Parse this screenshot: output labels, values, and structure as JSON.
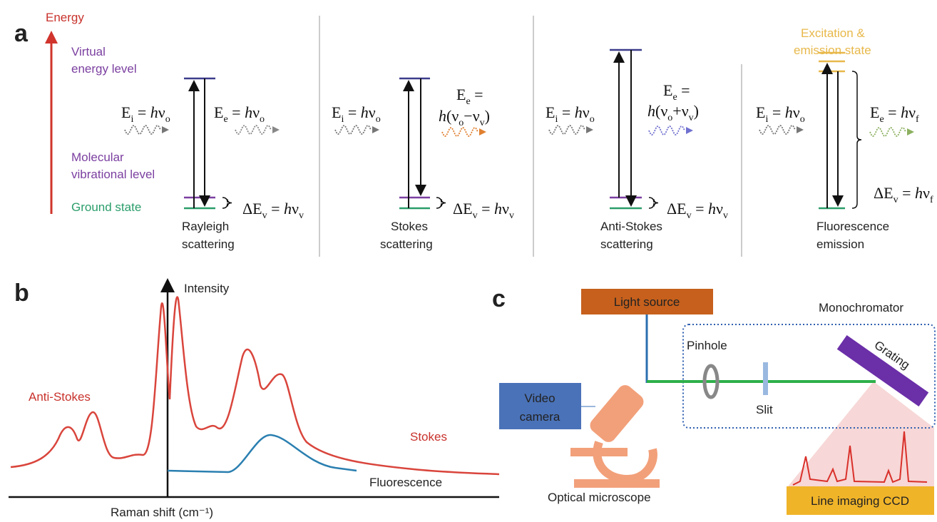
{
  "panel_a": {
    "label": "a",
    "axis_label": "Energy",
    "levels": {
      "virtual": [
        "Virtual",
        "energy level"
      ],
      "vibrational": [
        "Molecular",
        "vibrational level"
      ],
      "ground": "Ground state"
    },
    "excitation_state": [
      "Excitation &",
      "emission state"
    ],
    "processes": [
      {
        "name": [
          "Rayleigh",
          "scattering"
        ],
        "incident": [
          {
            "t": "E"
          },
          {
            "sub": "i"
          },
          {
            "t": " = "
          },
          {
            "i": "h"
          },
          {
            "t": "ν"
          },
          {
            "sub": "o"
          }
        ],
        "emitted": [
          [
            {
              "t": "E"
            },
            {
              "sub": "e"
            },
            {
              "t": " = "
            },
            {
              "i": "h"
            },
            {
              "t": "ν"
            },
            {
              "sub": "o"
            }
          ]
        ],
        "delta": [
          {
            "t": "ΔE"
          },
          {
            "sub": "v"
          },
          {
            "t": " = "
          },
          {
            "i": "h"
          },
          {
            "t": "ν"
          },
          {
            "sub": "v"
          }
        ]
      },
      {
        "name": [
          "Stokes",
          "scattering"
        ],
        "incident": [
          {
            "t": "E"
          },
          {
            "sub": "i"
          },
          {
            "t": " = "
          },
          {
            "i": "h"
          },
          {
            "t": "ν"
          },
          {
            "sub": "o"
          }
        ],
        "emitted": [
          [
            {
              "t": "E"
            },
            {
              "sub": "e"
            },
            {
              "t": " ="
            }
          ],
          [
            {
              "i": "h"
            },
            {
              "t": "(ν"
            },
            {
              "sub": "o"
            },
            {
              "t": "−ν"
            },
            {
              "sub": "v"
            },
            {
              "t": ")"
            }
          ]
        ],
        "delta": [
          {
            "t": "ΔE"
          },
          {
            "sub": "v"
          },
          {
            "t": " = "
          },
          {
            "i": "h"
          },
          {
            "t": "ν"
          },
          {
            "sub": "v"
          }
        ]
      },
      {
        "name": [
          "Anti-Stokes",
          "scattering"
        ],
        "incident": [
          {
            "t": "E"
          },
          {
            "sub": "i"
          },
          {
            "t": " = "
          },
          {
            "i": "h"
          },
          {
            "t": "ν"
          },
          {
            "sub": "o"
          }
        ],
        "emitted": [
          [
            {
              "t": "E"
            },
            {
              "sub": "e"
            },
            {
              "t": " ="
            }
          ],
          [
            {
              "i": "h"
            },
            {
              "t": "(ν"
            },
            {
              "sub": "o"
            },
            {
              "t": "+ν"
            },
            {
              "sub": "v"
            },
            {
              "t": ")"
            }
          ]
        ],
        "delta": [
          {
            "t": "ΔE"
          },
          {
            "sub": "v"
          },
          {
            "t": " = "
          },
          {
            "i": "h"
          },
          {
            "t": "ν"
          },
          {
            "sub": "v"
          }
        ]
      },
      {
        "name": [
          "Fluorescence",
          "emission"
        ],
        "incident": [
          {
            "t": "E"
          },
          {
            "sub": "i"
          },
          {
            "t": " = "
          },
          {
            "i": "h"
          },
          {
            "t": "ν"
          },
          {
            "sub": "o"
          }
        ],
        "emitted": [
          [
            {
              "t": "E"
            },
            {
              "sub": "e"
            },
            {
              "t": " = "
            },
            {
              "i": "h"
            },
            {
              "t": "ν"
            },
            {
              "sub": "f"
            }
          ]
        ],
        "delta": [
          {
            "t": "ΔE"
          },
          {
            "sub": "v"
          },
          {
            "t": " = "
          },
          {
            "i": "h"
          },
          {
            "t": "ν"
          },
          {
            "sub": "f"
          }
        ]
      }
    ]
  },
  "panel_b": {
    "label": "b",
    "y_axis_label": "Intensity",
    "x_axis_label": "Raman shift (cm⁻¹)",
    "anti_stokes": "Anti-Stokes",
    "stokes": "Stokes",
    "fluorescence": "Fluorescence"
  },
  "panel_c": {
    "label": "c",
    "light_source": "Light source",
    "monochromator": "Monochromator",
    "pinhole": "Pinhole",
    "grating": "Grating",
    "slit": "Slit",
    "video_camera": [
      "Video",
      "camera"
    ],
    "microscope": "Optical microscope",
    "ccd": "Line imaging CCD"
  }
}
